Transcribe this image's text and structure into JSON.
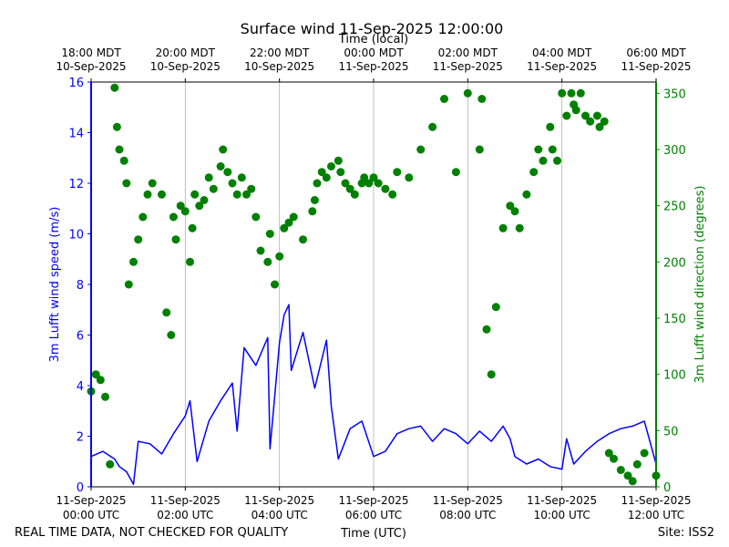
{
  "chart_data": {
    "type": "line",
    "title": "Surface wind 11-Sep-2025 12:00:00",
    "top_axis_label": "Time (local)",
    "xlabel": "Time (UTC)",
    "ylabel_left": "3m Lufft wind speed (m/s)",
    "ylabel_right": "3m Lufft wind direction (degrees)",
    "xlim_hours_utc": [
      0,
      12
    ],
    "ylim_left": [
      0,
      16
    ],
    "ylim_right": [
      0,
      360
    ],
    "yticks_left": [
      0,
      2,
      4,
      6,
      8,
      10,
      12,
      14,
      16
    ],
    "yticks_right": [
      0,
      50,
      100,
      150,
      200,
      250,
      300,
      350
    ],
    "grid": "vertical",
    "bottom_ticks": [
      {
        "line1": "11-Sep-2025",
        "line2": "00:00 UTC"
      },
      {
        "line1": "11-Sep-2025",
        "line2": "02:00 UTC"
      },
      {
        "line1": "11-Sep-2025",
        "line2": "04:00 UTC"
      },
      {
        "line1": "11-Sep-2025",
        "line2": "06:00 UTC"
      },
      {
        "line1": "11-Sep-2025",
        "line2": "08:00 UTC"
      },
      {
        "line1": "11-Sep-2025",
        "line2": "10:00 UTC"
      },
      {
        "line1": "11-Sep-2025",
        "line2": "12:00 UTC"
      }
    ],
    "top_ticks": [
      {
        "line1": "18:00 MDT",
        "line2": "10-Sep-2025"
      },
      {
        "line1": "20:00 MDT",
        "line2": "10-Sep-2025"
      },
      {
        "line1": "22:00 MDT",
        "line2": "10-Sep-2025"
      },
      {
        "line1": "00:00 MDT",
        "line2": "11-Sep-2025"
      },
      {
        "line1": "02:00 MDT",
        "line2": "11-Sep-2025"
      },
      {
        "line1": "04:00 MDT",
        "line2": "11-Sep-2025"
      },
      {
        "line1": "06:00 MDT",
        "line2": "11-Sep-2025"
      }
    ],
    "series": [
      {
        "name": "3m Lufft wind speed (m/s)",
        "axis": "left",
        "kind": "line",
        "color": "#0000ff",
        "x": [
          0,
          0.25,
          0.5,
          0.6,
          0.75,
          0.9,
          1,
          1.25,
          1.5,
          1.75,
          2,
          2.1,
          2.25,
          2.5,
          2.75,
          3,
          3.1,
          3.25,
          3.5,
          3.75,
          3.8,
          4,
          4.1,
          4.2,
          4.25,
          4.5,
          4.75,
          5,
          5.1,
          5.25,
          5.5,
          5.75,
          6,
          6.25,
          6.5,
          6.75,
          7,
          7.25,
          7.5,
          7.75,
          8,
          8.25,
          8.5,
          8.75,
          8.9,
          9,
          9.25,
          9.5,
          9.75,
          10,
          10.1,
          10.25,
          10.5,
          10.75,
          11,
          11.25,
          11.5,
          11.75,
          12
        ],
        "y": [
          1.2,
          1.4,
          1.1,
          0.8,
          0.6,
          0.1,
          1.8,
          1.7,
          1.3,
          2.1,
          2.8,
          3.4,
          1.0,
          2.6,
          3.4,
          4.1,
          2.2,
          5.5,
          4.8,
          5.9,
          1.5,
          5.7,
          6.8,
          7.2,
          4.6,
          6.1,
          3.9,
          5.8,
          3.2,
          1.1,
          2.3,
          2.6,
          1.2,
          1.4,
          2.1,
          2.3,
          2.4,
          1.8,
          2.3,
          2.1,
          1.7,
          2.2,
          1.8,
          2.4,
          1.9,
          1.2,
          0.9,
          1.1,
          0.8,
          0.7,
          1.9,
          0.9,
          1.4,
          1.8,
          2.1,
          2.3,
          2.4,
          2.6,
          0.9
        ]
      },
      {
        "name": "3m Lufft wind direction (degrees)",
        "axis": "right",
        "kind": "scatter",
        "color": "#008000",
        "x": [
          0,
          0.1,
          0.2,
          0.3,
          0.4,
          0.5,
          0.55,
          0.6,
          0.7,
          0.75,
          0.8,
          0.9,
          1,
          1.1,
          1.2,
          1.3,
          1.5,
          1.6,
          1.7,
          1.75,
          1.8,
          1.9,
          2,
          2.1,
          2.15,
          2.2,
          2.3,
          2.4,
          2.5,
          2.6,
          2.75,
          2.8,
          2.9,
          3,
          3.1,
          3.2,
          3.3,
          3.4,
          3.5,
          3.6,
          3.75,
          3.8,
          3.9,
          4,
          4.1,
          4.2,
          4.3,
          4.5,
          4.7,
          4.75,
          4.8,
          4.9,
          5,
          5.1,
          5.25,
          5.3,
          5.4,
          5.5,
          5.6,
          5.75,
          5.8,
          5.9,
          6,
          6.1,
          6.25,
          6.4,
          6.5,
          6.75,
          7,
          7.25,
          7.5,
          7.75,
          8,
          8.25,
          8.3,
          8.4,
          8.5,
          8.6,
          8.75,
          8.9,
          9,
          9.1,
          9.25,
          9.4,
          9.5,
          9.6,
          9.75,
          9.8,
          9.9,
          10,
          10.1,
          10.2,
          10.25,
          10.3,
          10.4,
          10.5,
          10.6,
          10.75,
          10.8,
          10.9,
          11,
          11.1,
          11.25,
          11.4,
          11.5,
          11.6,
          11.75,
          12
        ],
        "y": [
          85,
          100,
          95,
          80,
          20,
          355,
          320,
          300,
          290,
          270,
          180,
          200,
          220,
          240,
          260,
          270,
          260,
          155,
          135,
          240,
          220,
          250,
          245,
          200,
          230,
          260,
          250,
          255,
          275,
          265,
          285,
          300,
          280,
          270,
          260,
          275,
          260,
          265,
          240,
          210,
          200,
          225,
          180,
          205,
          230,
          235,
          240,
          220,
          245,
          255,
          270,
          280,
          275,
          285,
          290,
          280,
          270,
          265,
          260,
          270,
          275,
          270,
          275,
          270,
          265,
          260,
          280,
          275,
          300,
          320,
          345,
          280,
          350,
          300,
          345,
          140,
          100,
          160,
          230,
          250,
          245,
          230,
          260,
          280,
          300,
          290,
          320,
          300,
          290,
          350,
          330,
          350,
          340,
          335,
          350,
          330,
          325,
          330,
          320,
          325,
          30,
          25,
          15,
          10,
          5,
          20,
          30,
          10
        ]
      }
    ]
  },
  "footer": {
    "left_note": "REAL TIME DATA, NOT CHECKED FOR QUALITY",
    "site": "Site: ISS2"
  }
}
